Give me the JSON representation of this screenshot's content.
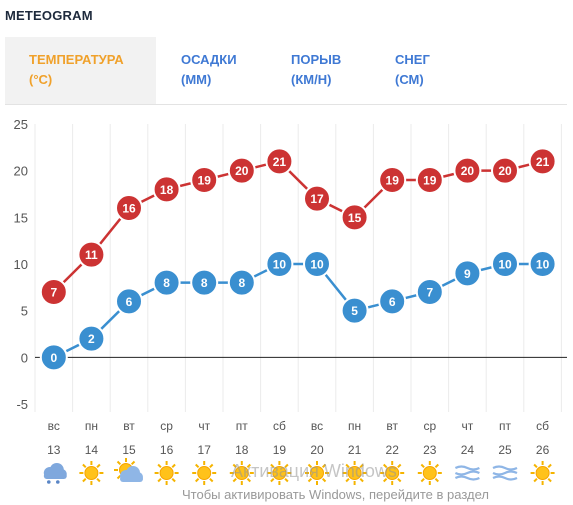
{
  "widget": {
    "title": "METEOGRAM"
  },
  "tabs": [
    {
      "line1": "ТЕМПЕРАТУРА",
      "line2": "(°C)",
      "active": true
    },
    {
      "line1": "ОСАДКИ",
      "line2": "(ММ)",
      "active": false
    },
    {
      "line1": "ПОРЫВ",
      "line2": "(КМ/Н)",
      "active": false
    },
    {
      "line1": "СНЕГ",
      "line2": "(СМ)",
      "active": false
    }
  ],
  "colors": {
    "high": "#cc3333",
    "low": "#3a8fd0",
    "active_tab": "#f0a12b",
    "tab": "#3f79d4"
  },
  "chart_data": {
    "type": "line",
    "categories": [
      "вс",
      "пн",
      "вт",
      "ср",
      "чт",
      "пт",
      "сб",
      "вс",
      "пн",
      "вт",
      "ср",
      "чт",
      "пт",
      "сб"
    ],
    "dates": [
      "13",
      "14",
      "15",
      "16",
      "17",
      "18",
      "19",
      "20",
      "21",
      "22",
      "23",
      "24",
      "25",
      "26"
    ],
    "series": [
      {
        "values": [
          7,
          11,
          16,
          18,
          19,
          20,
          21,
          17,
          15,
          19,
          19,
          20,
          20,
          21
        ],
        "color": "#cc3333"
      },
      {
        "values": [
          0,
          2,
          6,
          8,
          8,
          8,
          10,
          10,
          5,
          6,
          7,
          9,
          10,
          10
        ],
        "color": "#3a8fd0"
      }
    ],
    "yticks": [
      "25",
      "20",
      "15",
      "10",
      "5",
      "0",
      "-5"
    ],
    "ylim": [
      -5,
      25
    ],
    "grid": true
  },
  "weather_icons": [
    "snow-cloud-icon",
    "sun-icon",
    "partly-cloudy-icon",
    "sun-icon",
    "sun-icon",
    "sun-icon",
    "sun-icon",
    "sun-icon",
    "sun-icon",
    "sun-icon",
    "sun-icon",
    "wind-icon",
    "wind-icon",
    "sun-icon"
  ],
  "watermark": {
    "line1": "Активация Windows",
    "line2": "Чтобы активировать Windows, перейдите в раздел"
  }
}
